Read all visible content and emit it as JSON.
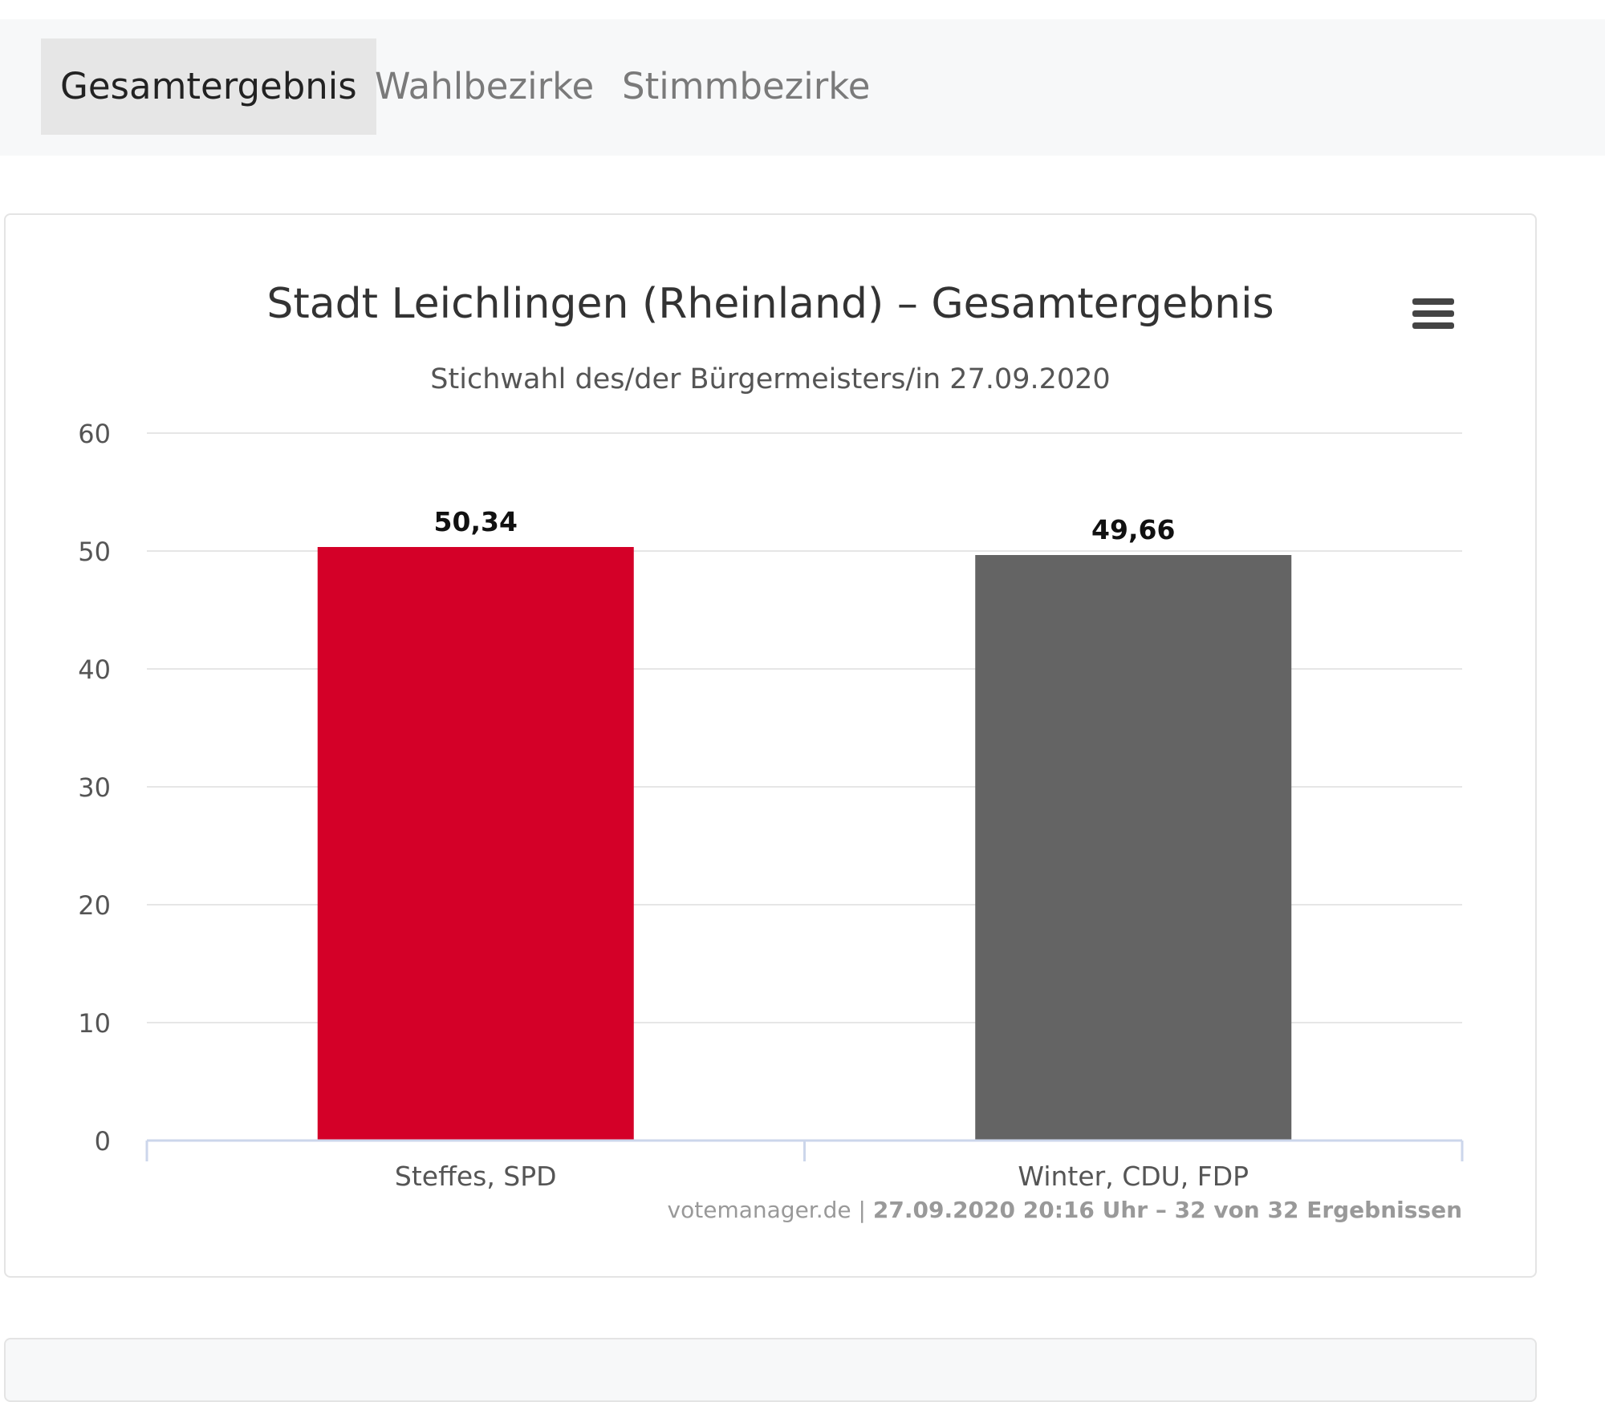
{
  "tabs": [
    {
      "label": "Gesamtergebnis",
      "active": true
    },
    {
      "label": "Wahlbezirke",
      "active": false
    },
    {
      "label": "Stimmbezirke",
      "active": false
    }
  ],
  "chart_data": {
    "type": "bar",
    "title": "Stadt Leichlingen (Rheinland) – Gesamtergebnis",
    "subtitle": "Stichwahl des/der Bürgermeisters/in 27.09.2020",
    "categories": [
      "Steffes, SPD",
      "Winter, CDU, FDP"
    ],
    "values": [
      50.34,
      49.66
    ],
    "data_labels": [
      "50,34",
      "49,66"
    ],
    "colors": [
      "#d40028",
      "#646464"
    ],
    "ylim": [
      0,
      60
    ],
    "yticks": [
      0,
      10,
      20,
      30,
      40,
      50,
      60
    ],
    "grid": true,
    "xlabel": "",
    "ylabel": ""
  },
  "credits": {
    "source": "votemanager.de",
    "separator": " | ",
    "detail": "27.09.2020 20:16 Uhr – 32 von 32 Ergebnissen"
  },
  "colors": {
    "tab_active_bg": "#e6e6e6",
    "tabbar_bg": "#f7f8f9"
  },
  "icons": {
    "menu": "hamburger-menu-icon"
  }
}
